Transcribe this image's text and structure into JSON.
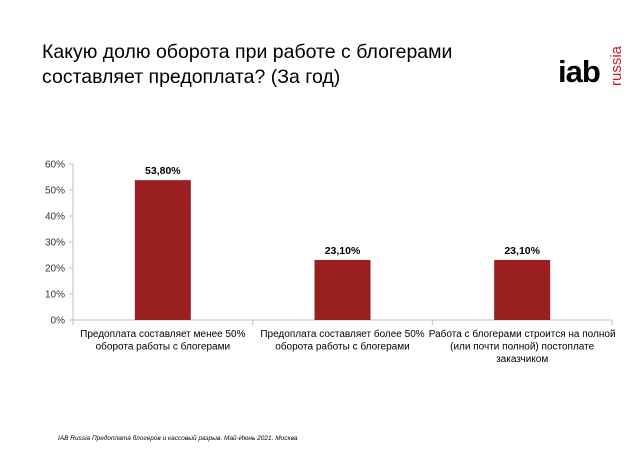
{
  "header": {
    "title": "Какую долю оборота при работе с блогерами составляет предоплата? (За год)"
  },
  "logo": {
    "main": "iab",
    "sub": "russia"
  },
  "colors": {
    "bar": "#9a1f21",
    "axis": "#bfbfbf",
    "brand": "#cc1f27"
  },
  "chart_data": {
    "type": "bar",
    "categories": [
      [
        "Предоплата составляет менее 50%",
        "оборота работы с блогерами"
      ],
      [
        "Предоплата составляет более 50%",
        "оборота работы с блогерами"
      ],
      [
        "Работа с блогерами строится на полной",
        "(или почти полной) постоплате",
        "заказчиком"
      ]
    ],
    "values": [
      53.8,
      23.1,
      23.1
    ],
    "value_labels": [
      "53,80%",
      "23,10%",
      "23,10%"
    ],
    "ylim": [
      0,
      60
    ],
    "yticks": [
      0,
      10,
      20,
      30,
      40,
      50,
      60
    ],
    "ytick_labels": [
      "0%",
      "10%",
      "20%",
      "30%",
      "40%",
      "50%",
      "60%"
    ],
    "grid": false,
    "legend": "none"
  },
  "footer": {
    "note": "IAB Russia Предоплата блогеров и кассовый разрыв. Май-Июнь 2021. Москва"
  }
}
